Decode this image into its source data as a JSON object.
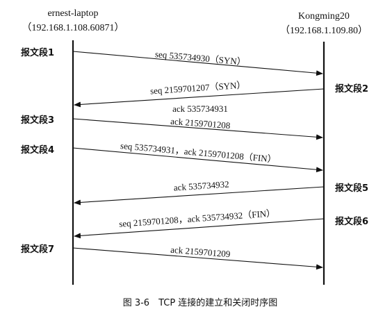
{
  "hosts": {
    "left": {
      "name": "ernest-laptop",
      "address": "（192.168.1.108.60871）"
    },
    "right": {
      "name": "Kongming20",
      "address": "（192.168.1.109.80）"
    }
  },
  "segments": [
    {
      "label": "报文段1",
      "side": "left",
      "direction": "left-to-right",
      "text": "seq 535734930（SYN）",
      "text2": ""
    },
    {
      "label": "报文段2",
      "side": "right",
      "direction": "right-to-left",
      "text": "seq 2159701207（SYN）",
      "text2": "ack 535734931"
    },
    {
      "label": "报文段3",
      "side": "left",
      "direction": "left-to-right",
      "text": "ack 2159701208",
      "text2": ""
    },
    {
      "label": "报文段4",
      "side": "left",
      "direction": "left-to-right",
      "text": "seq 535734931，ack 2159701208（FIN）",
      "text2": ""
    },
    {
      "label": "报文段5",
      "side": "right",
      "direction": "right-to-left",
      "text": "ack 535734932",
      "text2": ""
    },
    {
      "label": "报文段6",
      "side": "right",
      "direction": "right-to-left",
      "text": "seq 2159701208，ack 535734932（FIN）",
      "text2": ""
    },
    {
      "label": "报文段7",
      "side": "left",
      "direction": "left-to-right",
      "text": "ack 2159701209",
      "text2": ""
    }
  ],
  "caption": "图 3-6　TCP 连接的建立和关闭时序图"
}
